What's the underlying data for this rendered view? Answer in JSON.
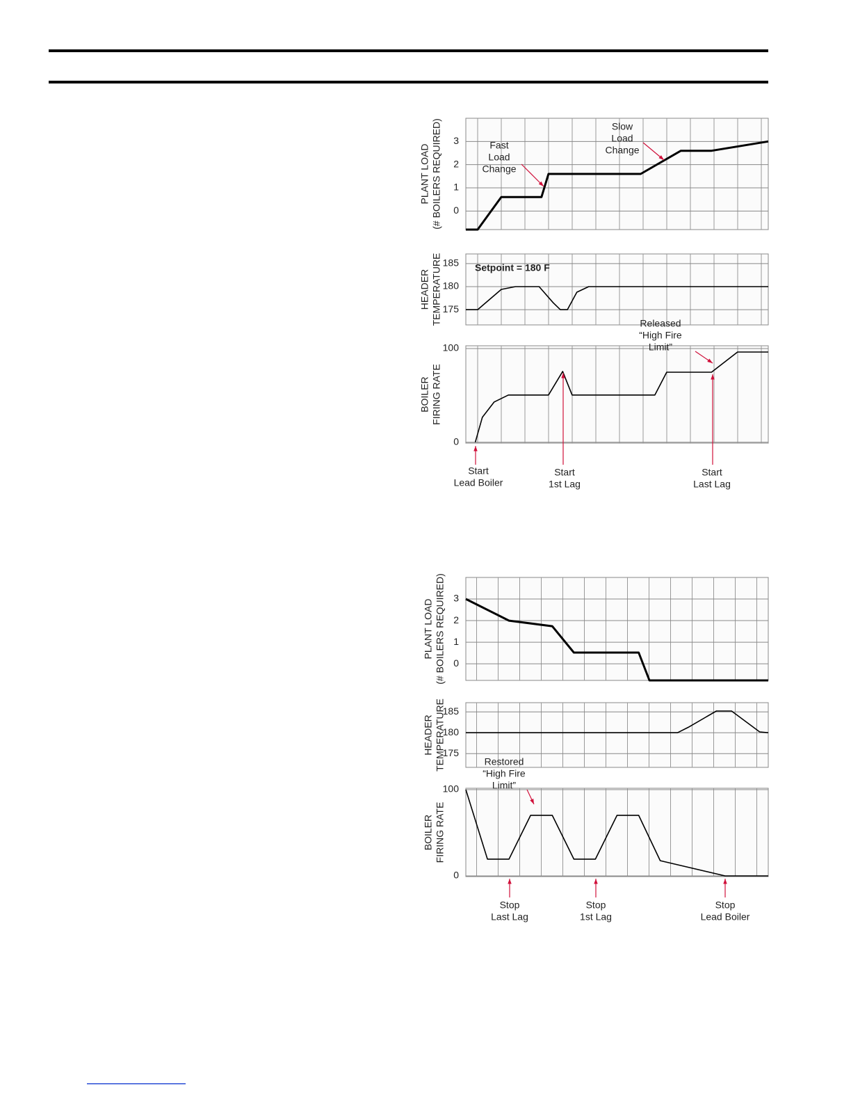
{
  "chart_data": [
    {
      "type": "line",
      "ylabel": [
        "PLANT LOAD",
        "(# BOILERS REQUIRED)"
      ],
      "color": "#000000",
      "x": [
        0,
        0.5,
        1.5,
        3.2,
        3.5,
        7.4,
        9.1,
        10.4,
        12.8
      ],
      "values": [
        -0.8,
        -0.8,
        0.6,
        0.6,
        1.6,
        1.6,
        2.6,
        2.6,
        3
      ],
      "xlim": [
        0,
        12.8
      ],
      "ylim": [
        -0.8,
        4
      ],
      "yticks": [
        0,
        1,
        2,
        3
      ],
      "grid": true,
      "annotations": [
        {
          "text": [
            "Fast",
            "Load",
            "Change"
          ]
        },
        {
          "text": [
            "Slow",
            "Load",
            "Change"
          ]
        }
      ]
    },
    {
      "type": "line",
      "ylabel": [
        "HEADER",
        "TEMPERATURE"
      ],
      "color": "#000000",
      "x": [
        0,
        0.5,
        1.5,
        2.1,
        3.1,
        3.7,
        4,
        4.3,
        4.7,
        5.2,
        12.8
      ],
      "values": [
        175,
        175,
        179.4,
        180,
        180,
        176.5,
        175,
        175,
        178.8,
        180,
        180
      ],
      "xlim": [
        0,
        12.8
      ],
      "ylim": [
        171.7,
        187.1
      ],
      "yticks": [
        175,
        180,
        185
      ],
      "grid": true,
      "annotations": [
        {
          "text": [
            "Setpoint = 180 F"
          ]
        }
      ]
    },
    {
      "type": "line",
      "ylabel": [
        "BOILER",
        "FIRING RATE"
      ],
      "color": "#000000",
      "x": [
        0.4,
        0.7,
        1.2,
        1.8,
        3.5,
        4.1,
        4.5,
        8,
        8.5,
        10.4,
        11.5,
        12.8
      ],
      "values": [
        0,
        26.7,
        43,
        50.4,
        50.4,
        75.6,
        50.4,
        50.4,
        74.8,
        74.8,
        96.3,
        96.3
      ],
      "xlim": [
        0,
        12.8
      ],
      "ylim": [
        -1,
        103
      ],
      "yticks": [
        0,
        100
      ],
      "grid": true,
      "annotations": [
        {
          "text": [
            "Released",
            "“High Fire",
            "Limit”"
          ]
        },
        {
          "text": [
            "Start",
            "Lead Boiler"
          ]
        },
        {
          "text": [
            "Start",
            "1st Lag"
          ]
        },
        {
          "text": [
            "Start",
            "Last Lag"
          ]
        }
      ]
    },
    {
      "type": "line",
      "ylabel": [
        "PLANT LOAD",
        "(# BOILERS REQUIRED)"
      ],
      "color": "#000000",
      "x": [
        0,
        2,
        4,
        5,
        8,
        8.5,
        14
      ],
      "values": [
        3,
        2,
        1.74,
        0.52,
        0.52,
        -0.77,
        -0.77
      ],
      "xlim": [
        0,
        14
      ],
      "ylim": [
        -0.77,
        4
      ],
      "yticks": [
        0,
        1,
        2,
        3
      ],
      "grid": true,
      "annotations": []
    },
    {
      "type": "line",
      "ylabel": [
        "HEADER",
        "TEMPERATURE"
      ],
      "color": "#000000",
      "x": [
        0,
        9.8,
        10.3,
        11.6,
        12.3,
        13.6,
        14
      ],
      "values": [
        180,
        180,
        181.3,
        185.2,
        185.2,
        180.2,
        180
      ],
      "xlim": [
        0,
        14
      ],
      "ylim": [
        171.7,
        187.2
      ],
      "yticks": [
        175,
        180,
        185
      ],
      "grid": true,
      "annotations": []
    },
    {
      "type": "line",
      "ylabel": [
        "BOILER",
        "FIRING RATE"
      ],
      "color": "#000000",
      "x": [
        0,
        1,
        2,
        3,
        4,
        5,
        6,
        7,
        8,
        9,
        12,
        14
      ],
      "values": [
        100,
        19.4,
        19.4,
        70.2,
        70.2,
        19.4,
        19.4,
        70.2,
        70.2,
        17.7,
        0,
        0
      ],
      "xlim": [
        0,
        14
      ],
      "ylim": [
        -0.8,
        101.6
      ],
      "yticks": [
        0,
        100
      ],
      "grid": true,
      "annotations": [
        {
          "text": [
            "Restored",
            "“High Fire",
            "Limit”"
          ]
        },
        {
          "text": [
            "Stop",
            "Last Lag"
          ]
        },
        {
          "text": [
            "Stop",
            "1st Lag"
          ]
        },
        {
          "text": [
            "Stop",
            "Lead Boiler"
          ]
        }
      ]
    }
  ]
}
